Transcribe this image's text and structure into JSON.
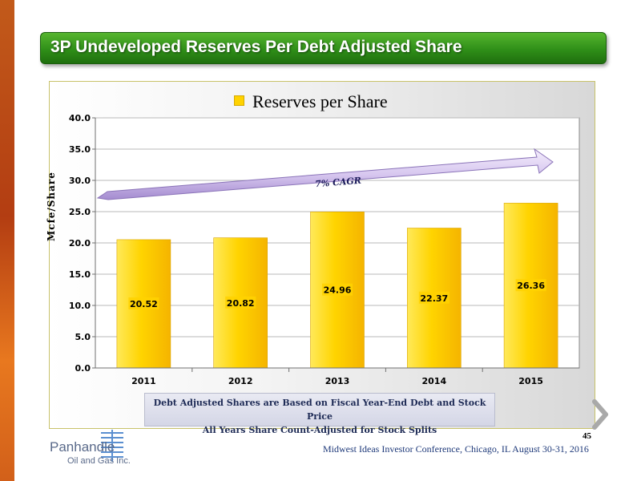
{
  "slide": {
    "title": "3P Undeveloped Reserves Per Debt Adjusted Share",
    "footnote_line1": "Debt Adjusted Shares are Based on Fiscal Year-End Debt and Stock Price",
    "footnote_line2": "All Years Share Count-Adjusted for Stock Splits",
    "page_number": "45",
    "conference": "Midwest Ideas Investor Conference, Chicago, IL  August 30-31, 2016",
    "logo_name": "Panhandle",
    "logo_sub": "Oil and Gas Inc.",
    "accent_color": "#2f8f18",
    "bar_color": "#ffd200"
  },
  "chart_data": {
    "type": "bar",
    "categories": [
      "2011",
      "2012",
      "2013",
      "2014",
      "2015"
    ],
    "series": [
      {
        "name": "Reserves per Share",
        "values": [
          20.52,
          20.82,
          24.96,
          22.37,
          26.36
        ]
      }
    ],
    "value_labels": [
      "20.52",
      "20.82",
      "24.96",
      "22.37",
      "26.36"
    ],
    "y_ticks": [
      "0.0",
      "5.0",
      "10.0",
      "15.0",
      "20.0",
      "25.0",
      "30.0",
      "35.0",
      "40.0"
    ],
    "ylabel": "Mcfe/Share",
    "ylim": [
      0,
      40
    ],
    "grid": true,
    "legend_position": "top-center",
    "annotation": "7% CAGR"
  }
}
